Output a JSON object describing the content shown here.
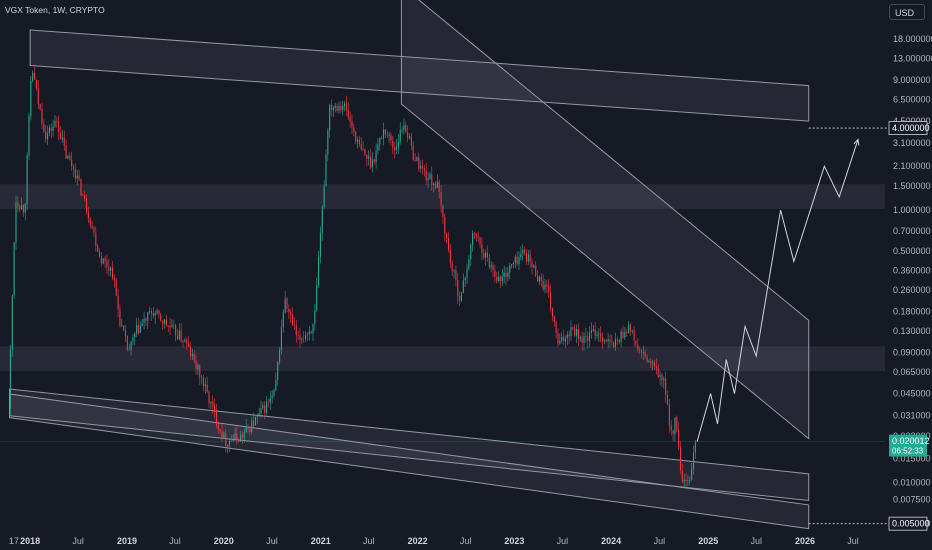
{
  "header": {
    "symbol_line": "VGX Token, 1W, CRYPTO"
  },
  "currency_button": "USD",
  "colors": {
    "background": "#161a25",
    "up": "#22ab94",
    "down": "#f23645",
    "zone": "#2a2e39",
    "channel": "#9598a1",
    "last_price_bg": "#22ab94"
  },
  "chart_data": {
    "type": "candlestick",
    "symbol": "VGX Token",
    "interval": "1W",
    "exchange": "CRYPTO",
    "y_scale": "log",
    "y_range": [
      0.0042,
      24
    ],
    "y_ticks": [
      "18.000000",
      "13.000000",
      "9.000000",
      "6.500000",
      "4.500000",
      "3.100000",
      "2.100000",
      "1.500000",
      "1.000000",
      "0.700000",
      "0.500000",
      "0.360000",
      "0.260000",
      "0.180000",
      "0.130000",
      "0.090000",
      "0.065000",
      "0.045000",
      "0.031000",
      "0.022000",
      "0.015000",
      "0.010000",
      "0.007500",
      "0.005000"
    ],
    "x_ticks": [
      {
        "label": "17",
        "date": "2017-11-01",
        "bold": false
      },
      {
        "label": "2018",
        "date": "2018-01-01",
        "bold": true
      },
      {
        "label": "Jul",
        "date": "2018-07-01",
        "bold": false
      },
      {
        "label": "2019",
        "date": "2019-01-01",
        "bold": true
      },
      {
        "label": "Jul",
        "date": "2019-07-01",
        "bold": false
      },
      {
        "label": "2020",
        "date": "2020-01-01",
        "bold": true
      },
      {
        "label": "Jul",
        "date": "2020-07-01",
        "bold": false
      },
      {
        "label": "2021",
        "date": "2021-01-01",
        "bold": true
      },
      {
        "label": "Jul",
        "date": "2021-07-01",
        "bold": false
      },
      {
        "label": "2022",
        "date": "2022-01-01",
        "bold": true
      },
      {
        "label": "Jul",
        "date": "2022-07-01",
        "bold": false
      },
      {
        "label": "2023",
        "date": "2023-01-01",
        "bold": true
      },
      {
        "label": "Jul",
        "date": "2023-07-01",
        "bold": false
      },
      {
        "label": "2024",
        "date": "2024-01-01",
        "bold": true
      },
      {
        "label": "Jul",
        "date": "2024-07-01",
        "bold": false
      },
      {
        "label": "2025",
        "date": "2025-01-01",
        "bold": true
      },
      {
        "label": "Jul",
        "date": "2025-07-01",
        "bold": false
      },
      {
        "label": "2026",
        "date": "2026-01-01",
        "bold": true
      },
      {
        "label": "Jul",
        "date": "2026-07-01",
        "bold": false
      }
    ],
    "price_path": [
      [
        "2017-10-15",
        0.035
      ],
      [
        "2017-11-10",
        1.2
      ],
      [
        "2017-12-15",
        1.0
      ],
      [
        "2018-01-10",
        11.5
      ],
      [
        "2018-02-05",
        6.0
      ],
      [
        "2018-03-05",
        3.5
      ],
      [
        "2018-04-15",
        4.5
      ],
      [
        "2018-05-20",
        2.5
      ],
      [
        "2018-06-20",
        2.0
      ],
      [
        "2018-08-15",
        0.9
      ],
      [
        "2018-09-25",
        0.45
      ],
      [
        "2018-11-10",
        0.36
      ],
      [
        "2018-12-10",
        0.15
      ],
      [
        "2019-01-10",
        0.09
      ],
      [
        "2019-02-10",
        0.13
      ],
      [
        "2019-04-10",
        0.18
      ],
      [
        "2019-06-10",
        0.14
      ],
      [
        "2019-08-10",
        0.11
      ],
      [
        "2019-10-10",
        0.06
      ],
      [
        "2019-12-05",
        0.03
      ],
      [
        "2020-01-10",
        0.02
      ],
      [
        "2020-03-15",
        0.022
      ],
      [
        "2020-05-10",
        0.03
      ],
      [
        "2020-07-15",
        0.045
      ],
      [
        "2020-08-20",
        0.22
      ],
      [
        "2020-10-10",
        0.11
      ],
      [
        "2020-12-10",
        0.14
      ],
      [
        "2021-01-10",
        1.0
      ],
      [
        "2021-02-05",
        5.8
      ],
      [
        "2021-04-01",
        6.0
      ],
      [
        "2021-06-01",
        2.8
      ],
      [
        "2021-07-15",
        2.2
      ],
      [
        "2021-09-01",
        4.0
      ],
      [
        "2021-10-10",
        2.8
      ],
      [
        "2021-11-15",
        4.4
      ],
      [
        "2021-12-20",
        2.5
      ],
      [
        "2022-02-05",
        1.8
      ],
      [
        "2022-03-20",
        1.5
      ],
      [
        "2022-05-10",
        0.4
      ],
      [
        "2022-06-15",
        0.22
      ],
      [
        "2022-08-05",
        0.7
      ],
      [
        "2022-09-20",
        0.45
      ],
      [
        "2022-11-10",
        0.3
      ],
      [
        "2022-12-20",
        0.38
      ],
      [
        "2023-02-10",
        0.5
      ],
      [
        "2023-03-25",
        0.35
      ],
      [
        "2023-05-10",
        0.25
      ],
      [
        "2023-06-20",
        0.1
      ],
      [
        "2023-08-10",
        0.14
      ],
      [
        "2023-09-20",
        0.11
      ],
      [
        "2023-11-10",
        0.13
      ],
      [
        "2024-01-10",
        0.1
      ],
      [
        "2024-03-10",
        0.14
      ],
      [
        "2024-04-20",
        0.09
      ],
      [
        "2024-06-01",
        0.075
      ],
      [
        "2024-07-20",
        0.055
      ],
      [
        "2024-08-20",
        0.022
      ],
      [
        "2024-09-05",
        0.03
      ],
      [
        "2024-09-25",
        0.01
      ],
      [
        "2024-10-25",
        0.0095
      ],
      [
        "2024-11-15",
        0.02
      ]
    ],
    "projection_path": [
      [
        "2024-11-20",
        0.02
      ],
      [
        "2025-01-10",
        0.045
      ],
      [
        "2025-02-05",
        0.027
      ],
      [
        "2025-03-10",
        0.08
      ],
      [
        "2025-04-10",
        0.045
      ],
      [
        "2025-05-20",
        0.14
      ],
      [
        "2025-07-01",
        0.085
      ],
      [
        "2025-10-01",
        1.0
      ],
      [
        "2025-11-20",
        0.42
      ],
      [
        "2026-03-15",
        2.1
      ],
      [
        "2026-05-10",
        1.25
      ],
      [
        "2026-07-20",
        3.3
      ]
    ],
    "horizontal_zones": [
      {
        "label": "resistance zone",
        "from": 1.02,
        "to": 1.55
      },
      {
        "label": "support zone",
        "from": 0.066,
        "to": 0.1
      }
    ],
    "channels": [
      {
        "start": [
          "2018-01-01",
          11.5
        ],
        "end": [
          "2026-01-15",
          4.5
        ],
        "width": 0.6
      },
      {
        "start": [
          "2021-11-01",
          6.0
        ],
        "end": [
          "2026-01-15",
          0.021
        ],
        "width": 2.0
      },
      {
        "start": [
          "2017-10-15",
          0.031
        ],
        "end": [
          "2026-01-15",
          0.0074
        ],
        "width": 0.45
      },
      {
        "start": [
          "2017-10-15",
          0.03
        ],
        "end": [
          "2026-01-15",
          0.0046
        ],
        "width": 0.4
      }
    ],
    "projection_levels": [
      {
        "value": 4.0,
        "label": "4.000000",
        "start": "2026-01-15"
      },
      {
        "value": 0.005,
        "label": "0.005000",
        "start": "2026-01-15"
      }
    ],
    "last_price": {
      "value": "0.020012",
      "countdown": "06:52:33"
    }
  }
}
